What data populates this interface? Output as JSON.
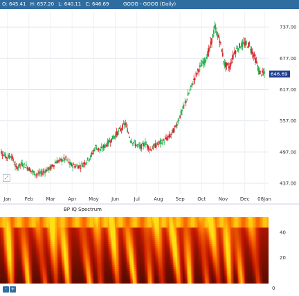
{
  "header": {
    "ohlc": {
      "open": "O: 645.41",
      "high": "H: 657.20",
      "low": "L: 640.11",
      "close": "C: 646.69"
    },
    "title": "GOOG - GOOG (Daily)"
  },
  "chart_data": [
    {
      "type": "candlestick",
      "title": "GOOG - GOOG (Daily)",
      "ylim": [
        437,
        757
      ],
      "y_ticks": [
        "737.00",
        "677.00",
        "617.00",
        "557.00",
        "497.00",
        "437.00"
      ],
      "x_ticks": [
        "Jan",
        "Feb",
        "Mar",
        "Apr",
        "May",
        "Jun",
        "Jul",
        "Aug",
        "Sep",
        "Oct",
        "Nov",
        "Dec",
        "08Jan"
      ],
      "last_value_label": "646.69",
      "grid": true,
      "colors": {
        "up": "#22b14c",
        "down": "#d6262c",
        "last_label_bg": "#1d3d8f"
      },
      "closes_weekly": [
        {
          "week": 1,
          "close": 497
        },
        {
          "week": 2,
          "close": 487
        },
        {
          "week": 3,
          "close": 490
        },
        {
          "week": 4,
          "close": 466
        },
        {
          "week": 5,
          "close": 474
        },
        {
          "week": 6,
          "close": 470
        },
        {
          "week": 7,
          "close": 461
        },
        {
          "week": 8,
          "close": 454
        },
        {
          "week": 9,
          "close": 456
        },
        {
          "week": 10,
          "close": 462
        },
        {
          "week": 11,
          "close": 467
        },
        {
          "week": 12,
          "close": 478
        },
        {
          "week": 13,
          "close": 481
        },
        {
          "week": 14,
          "close": 484
        },
        {
          "week": 15,
          "close": 472
        },
        {
          "week": 16,
          "close": 470
        },
        {
          "week": 17,
          "close": 470
        },
        {
          "week": 18,
          "close": 478
        },
        {
          "week": 19,
          "close": 488
        },
        {
          "week": 20,
          "close": 507
        },
        {
          "week": 21,
          "close": 500
        },
        {
          "week": 22,
          "close": 510
        },
        {
          "week": 23,
          "close": 519
        },
        {
          "week": 24,
          "close": 530
        },
        {
          "week": 25,
          "close": 540
        },
        {
          "week": 26,
          "close": 552
        },
        {
          "week": 27,
          "close": 521
        },
        {
          "week": 28,
          "close": 512
        },
        {
          "week": 29,
          "close": 506
        },
        {
          "week": 30,
          "close": 514
        },
        {
          "week": 31,
          "close": 502
        },
        {
          "week": 32,
          "close": 509
        },
        {
          "week": 33,
          "close": 515
        },
        {
          "week": 34,
          "close": 520
        },
        {
          "week": 35,
          "close": 528
        },
        {
          "week": 36,
          "close": 543
        },
        {
          "week": 37,
          "close": 566
        },
        {
          "week": 38,
          "close": 590
        },
        {
          "week": 39,
          "close": 615
        },
        {
          "week": 40,
          "close": 640
        },
        {
          "week": 41,
          "close": 660
        },
        {
          "week": 42,
          "close": 672
        },
        {
          "week": 43,
          "close": 695
        },
        {
          "week": 44,
          "close": 736
        },
        {
          "week": 45,
          "close": 712
        },
        {
          "week": 46,
          "close": 665
        },
        {
          "week": 47,
          "close": 660
        },
        {
          "week": 48,
          "close": 690
        },
        {
          "week": 49,
          "close": 700
        },
        {
          "week": 50,
          "close": 705
        },
        {
          "week": 51,
          "close": 702
        },
        {
          "week": 52,
          "close": 680
        },
        {
          "week": 53,
          "close": 650
        },
        {
          "week": 54,
          "close": 646.69
        }
      ]
    },
    {
      "type": "heatmap",
      "title": "BP IQ Spectrum",
      "ylim": [
        0,
        52
      ],
      "y_ticks": [
        "40",
        "20",
        "0"
      ],
      "colors": {
        "low": "#000000",
        "mid": "#c82a00",
        "high": "#ffd400"
      },
      "ridge_weeks": [
        2,
        5,
        8,
        11,
        13,
        17,
        20,
        23,
        26,
        30,
        32,
        35,
        38,
        41,
        43,
        46,
        48,
        51
      ]
    }
  ],
  "toolbar": {
    "zero_label": "0"
  }
}
